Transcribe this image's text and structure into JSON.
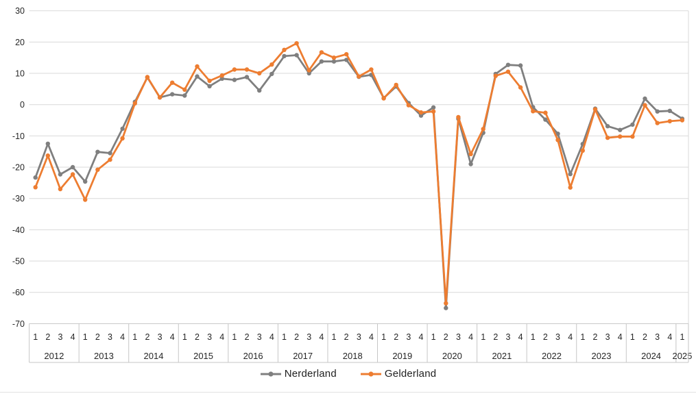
{
  "chart_data": {
    "type": "line",
    "title": "",
    "legend_position": "bottom",
    "grid": true,
    "y_axis": {
      "min": -70,
      "max": 30,
      "step": 10,
      "tick_labels": [
        "30",
        "20",
        "10",
        "0",
        "-10",
        "-20",
        "-30",
        "-40",
        "-50",
        "-60",
        "-70"
      ]
    },
    "x_axis": {
      "years": [
        {
          "label": "2012",
          "quarters": [
            "1",
            "2",
            "3",
            "4"
          ]
        },
        {
          "label": "2013",
          "quarters": [
            "1",
            "2",
            "3",
            "4"
          ]
        },
        {
          "label": "2014",
          "quarters": [
            "1",
            "2",
            "3",
            "4"
          ]
        },
        {
          "label": "2015",
          "quarters": [
            "1",
            "2",
            "3",
            "4"
          ]
        },
        {
          "label": "2016",
          "quarters": [
            "1",
            "2",
            "3",
            "4"
          ]
        },
        {
          "label": "2017",
          "quarters": [
            "1",
            "2",
            "3",
            "4"
          ]
        },
        {
          "label": "2018",
          "quarters": [
            "1",
            "2",
            "3",
            "4"
          ]
        },
        {
          "label": "2019",
          "quarters": [
            "1",
            "2",
            "3",
            "4"
          ]
        },
        {
          "label": "2020",
          "quarters": [
            "1",
            "2",
            "3",
            "4"
          ]
        },
        {
          "label": "2021",
          "quarters": [
            "1",
            "2",
            "3",
            "4"
          ]
        },
        {
          "label": "2022",
          "quarters": [
            "1",
            "2",
            "3",
            "4"
          ]
        },
        {
          "label": "2023",
          "quarters": [
            "1",
            "2",
            "3",
            "4"
          ]
        },
        {
          "label": "2024",
          "quarters": [
            "1",
            "2",
            "3",
            "4"
          ]
        },
        {
          "label": "2025",
          "quarters": [
            "1"
          ]
        }
      ]
    },
    "series": [
      {
        "name": "Nerderland",
        "color": "#7f7f7f",
        "values": [
          -23.3,
          -12.5,
          -22.3,
          -20.0,
          -24.6,
          -15.1,
          -15.5,
          -7.7,
          0.9,
          8.7,
          2.3,
          3.3,
          2.9,
          9.0,
          5.9,
          8.3,
          7.9,
          8.8,
          4.5,
          9.8,
          15.5,
          15.8,
          10.0,
          13.8,
          13.8,
          14.3,
          8.9,
          9.5,
          2.1,
          5.8,
          0.5,
          -3.5,
          -0.9,
          -65.0,
          -4.5,
          -19.0,
          -9.0,
          9.8,
          12.7,
          12.5,
          -0.8,
          -4.8,
          -9.3,
          -22.2,
          -12.6,
          -1.3,
          -6.9,
          -8.1,
          -6.4,
          1.9,
          -2.2,
          -2.0,
          -4.5
        ]
      },
      {
        "name": "Gelderland",
        "color": "#ed7d31",
        "values": [
          -26.4,
          -16.3,
          -27.0,
          -22.3,
          -30.4,
          -20.8,
          -17.6,
          -10.8,
          0.4,
          8.8,
          2.3,
          7.0,
          4.8,
          12.2,
          7.6,
          9.3,
          11.2,
          11.2,
          10.0,
          12.8,
          17.5,
          19.6,
          11.0,
          16.7,
          15.0,
          16.1,
          9.0,
          11.2,
          2.0,
          6.3,
          -0.2,
          -2.5,
          -2.2,
          -63.5,
          -4.0,
          -15.8,
          -7.8,
          9.2,
          10.5,
          5.5,
          -2.1,
          -2.6,
          -11.3,
          -26.5,
          -14.7,
          -1.5,
          -10.6,
          -10.2,
          -10.2,
          -0.2,
          -5.9,
          -5.3,
          -5.0
        ]
      }
    ]
  },
  "colors": {
    "gridline": "#d9d9d9",
    "axis_band_border": "#c6c6c6",
    "tick_text": "#262626",
    "background": "#ffffff"
  }
}
